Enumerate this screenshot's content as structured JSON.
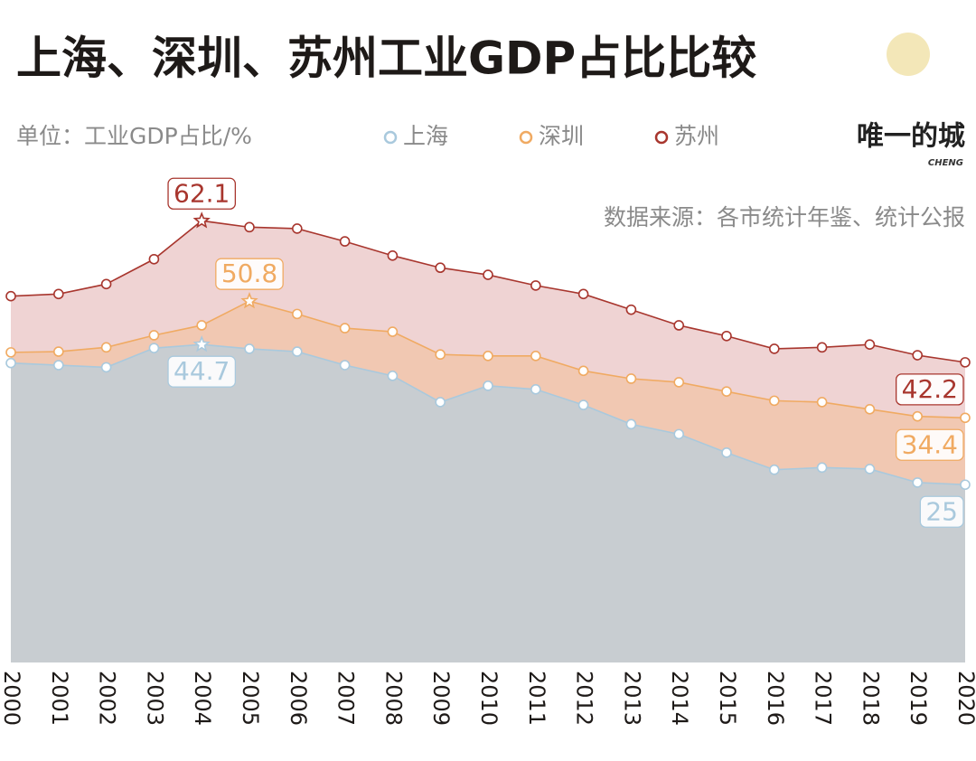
{
  "chart_data": {
    "type": "area",
    "title": "上海、深圳、苏州工业GDP占比比较",
    "subtitle": "单位：工业GDP占比/%",
    "source": "数据来源：各市统计年鉴、统计公报",
    "brand": "唯一的城",
    "brand_sub": "CHENG",
    "categories": [
      "2000",
      "2001",
      "2002",
      "2003",
      "2004",
      "2005",
      "2006",
      "2007",
      "2008",
      "2009",
      "2010",
      "2011",
      "2012",
      "2013",
      "2014",
      "2015",
      "2016",
      "2017",
      "2018",
      "2019",
      "2020"
    ],
    "ylim": [
      0,
      65
    ],
    "series": [
      {
        "name": "上海",
        "color": "#a9c9dd",
        "area_color": "#c8cdd1",
        "values": [
          42.1,
          41.8,
          41.5,
          44.2,
          44.7,
          44.1,
          43.7,
          41.8,
          40.3,
          36.6,
          38.9,
          38.4,
          36.2,
          33.5,
          32.1,
          29.5,
          27.1,
          27.4,
          27.2,
          25.3,
          25
        ]
      },
      {
        "name": "深圳",
        "color": "#f0aa62",
        "area_color": "#f1c8b2",
        "values": [
          43.6,
          43.7,
          44.3,
          46.0,
          47.4,
          50.8,
          49.0,
          47.0,
          46.5,
          43.3,
          43.1,
          43.1,
          41.0,
          39.9,
          39.4,
          38.1,
          36.8,
          36.6,
          35.6,
          34.6,
          34.4
        ]
      },
      {
        "name": "苏州",
        "color": "#a8362e",
        "area_color": "#efd3d3",
        "values": [
          51.5,
          51.8,
          53.2,
          56.7,
          62.1,
          61.2,
          61.0,
          59.2,
          57.2,
          55.5,
          54.5,
          53.0,
          51.8,
          49.6,
          47.4,
          45.9,
          44.1,
          44.3,
          44.7,
          43.2,
          42.2
        ]
      }
    ]
  }
}
